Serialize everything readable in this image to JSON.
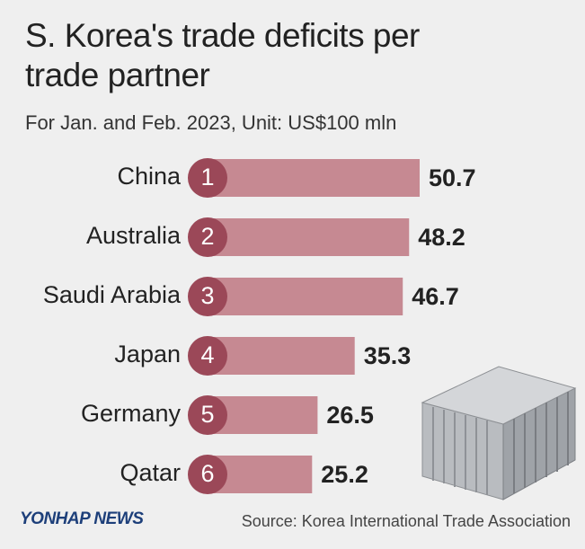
{
  "chart_data": {
    "type": "bar",
    "title": "S. Korea's trade deficits per trade partner",
    "subtitle": "For Jan. and Feb. 2023, Unit: US$100 mln",
    "categories": [
      "China",
      "Australia",
      "Saudi Arabia",
      "Japan",
      "Germany",
      "Qatar"
    ],
    "ranks": [
      1,
      2,
      3,
      4,
      5,
      6
    ],
    "values": [
      50.7,
      48.2,
      46.7,
      35.3,
      26.5,
      25.2
    ],
    "color": "#c68992",
    "rank_color": "#9b4858",
    "logo": "YONHAP NEWS",
    "source": "Source: Korea International Trade Association"
  }
}
